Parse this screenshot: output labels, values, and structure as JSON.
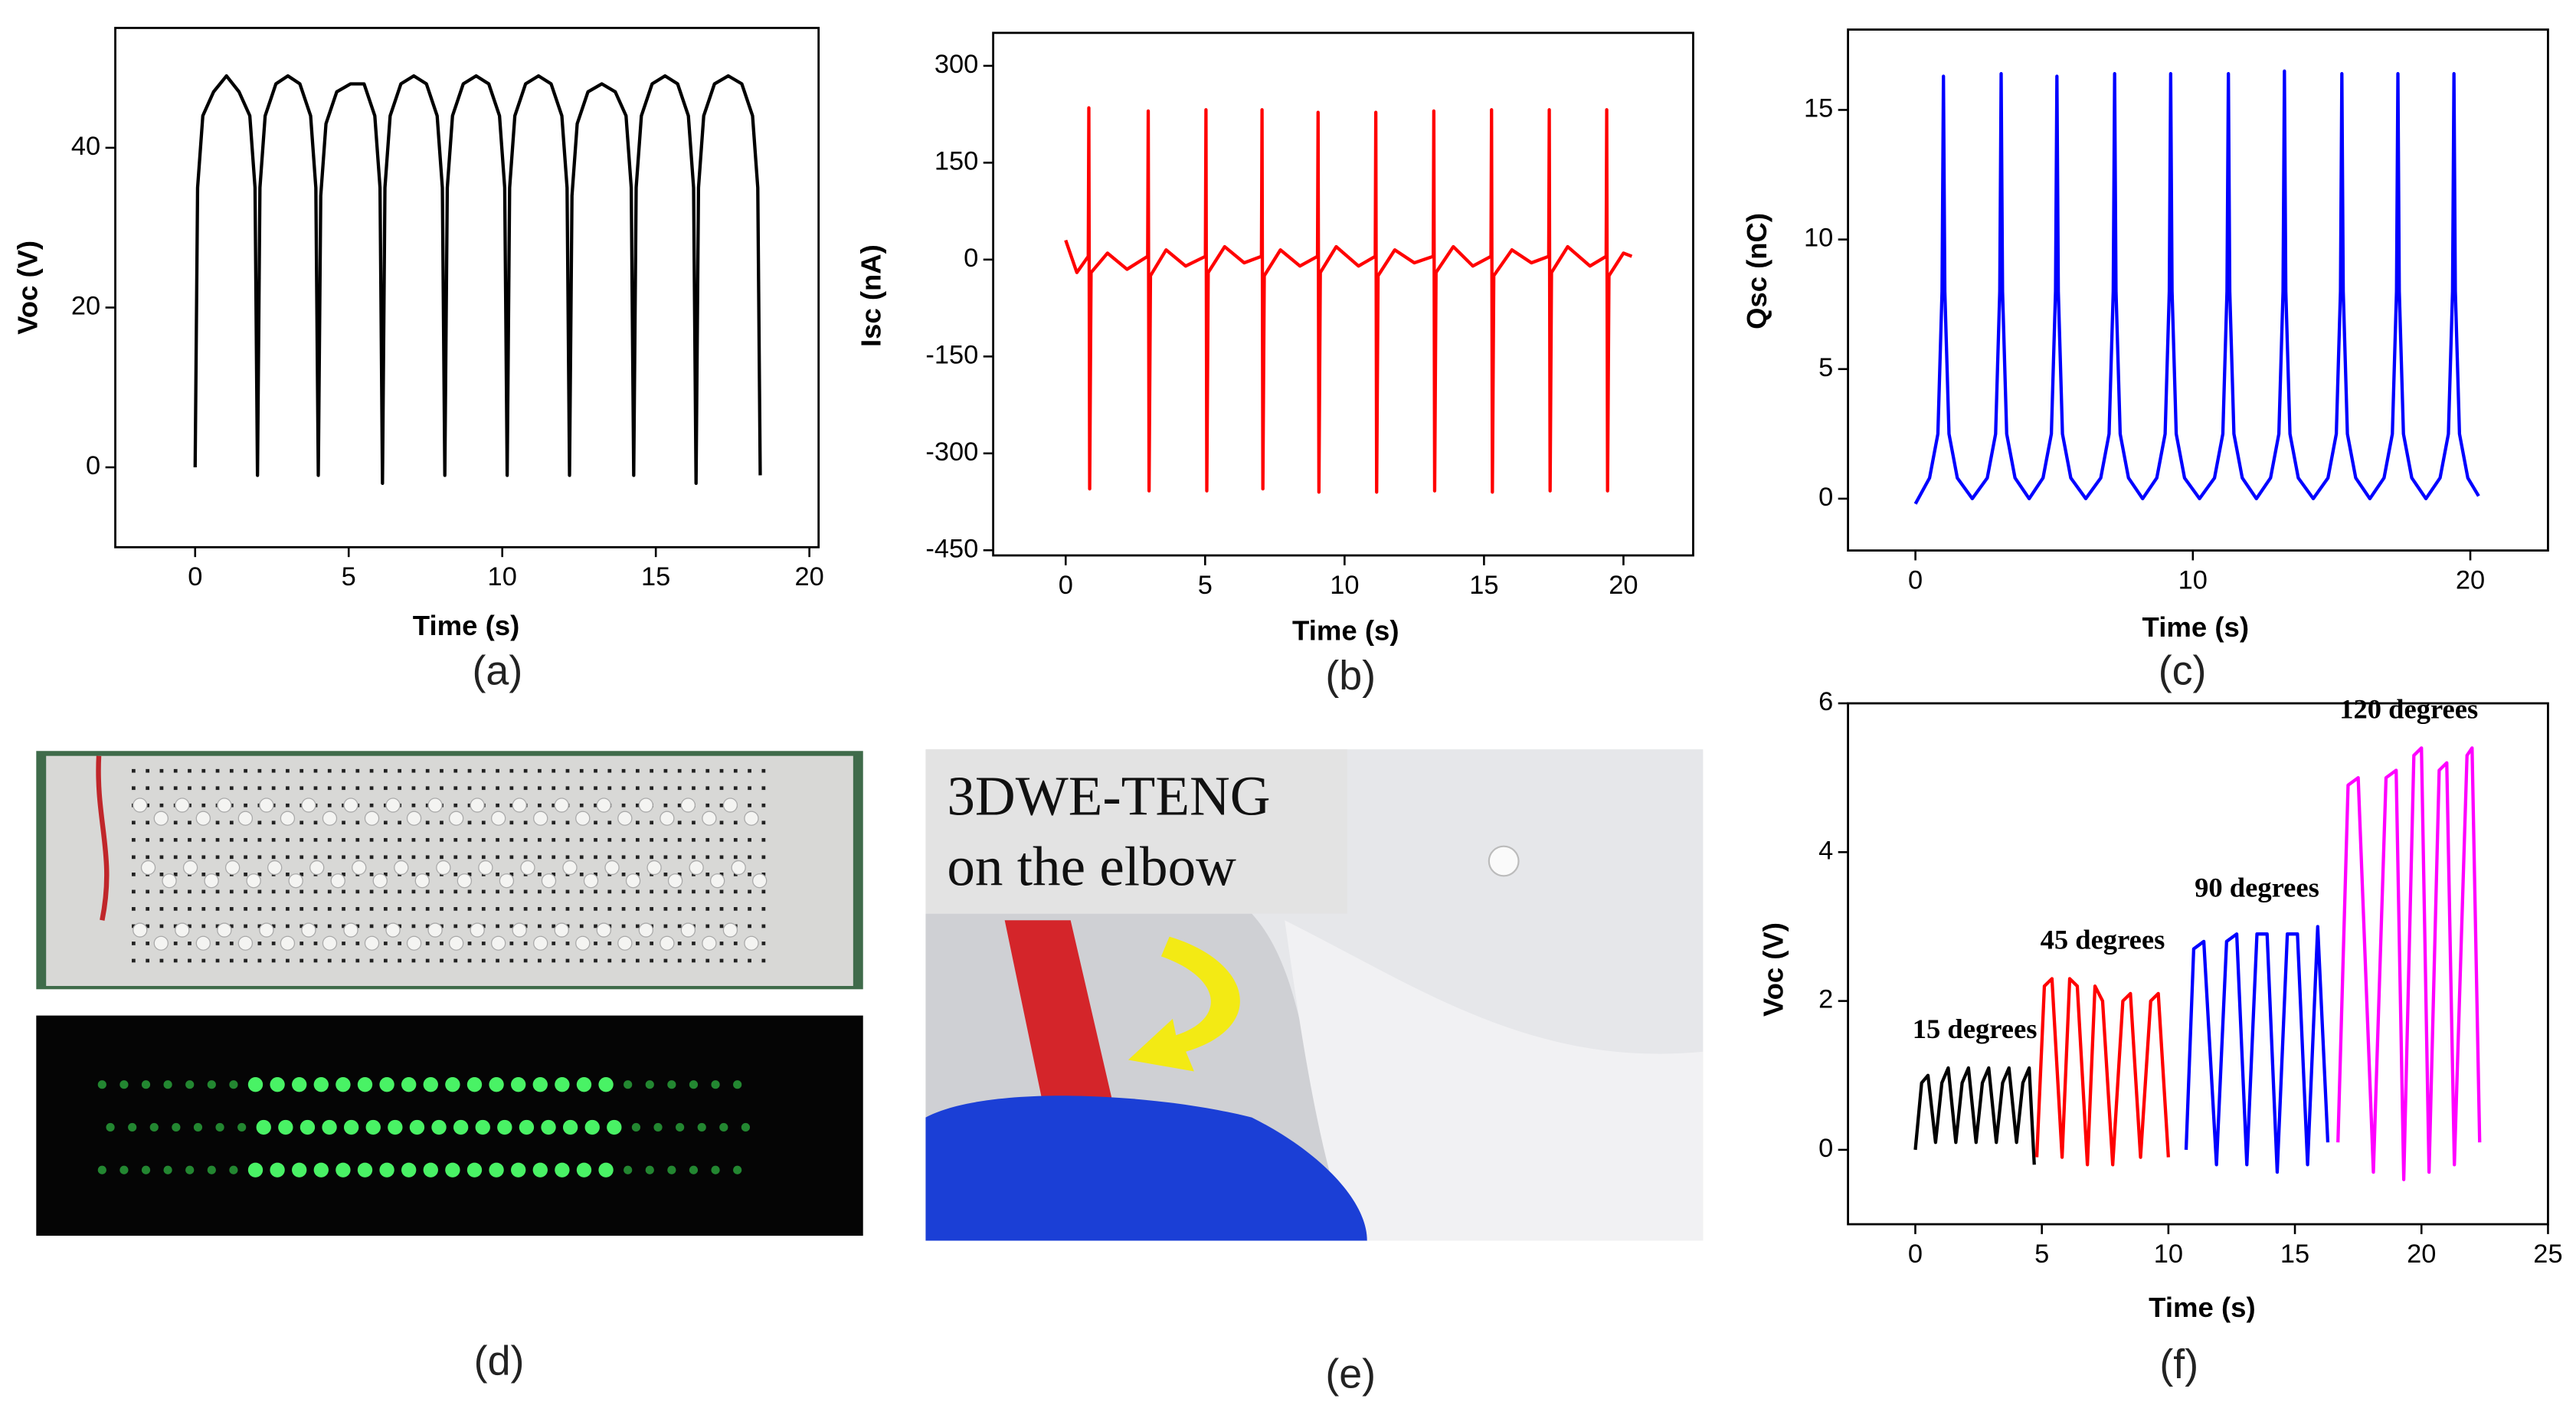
{
  "chart_data": [
    {
      "type": "line",
      "caption": "(a)",
      "xlabel": "Time (s)",
      "ylabel": "Voc (V)",
      "color": "#000000",
      "xlim": [
        -2.6,
        20.3
      ],
      "ylim": [
        -10,
        55
      ],
      "xticks": [
        0,
        5,
        10,
        15,
        20
      ],
      "yticks": [
        0,
        20,
        40
      ],
      "x": [
        0,
        0.08,
        0.25,
        0.6,
        1.02,
        1.43,
        1.78,
        1.95,
        2.03,
        2.11,
        2.28,
        2.63,
        3.02,
        3.41,
        3.76,
        3.93,
        4.01,
        4.09,
        4.26,
        4.61,
        5.06,
        5.5,
        5.85,
        6.02,
        6.1,
        6.18,
        6.35,
        6.7,
        7.12,
        7.53,
        7.88,
        8.05,
        8.13,
        8.21,
        8.38,
        8.73,
        9.15,
        9.56,
        9.91,
        10.08,
        10.16,
        10.24,
        10.41,
        10.76,
        11.18,
        11.59,
        11.94,
        12.11,
        12.19,
        12.27,
        12.44,
        12.79,
        13.24,
        13.68,
        14.03,
        14.2,
        14.28,
        14.36,
        14.53,
        14.88,
        15.3,
        15.71,
        16.06,
        16.23,
        16.31,
        16.39,
        16.56,
        16.91,
        17.36,
        17.8,
        18.15,
        18.32,
        18.4
      ],
      "values": [
        0,
        35,
        44,
        47,
        49,
        47,
        44,
        35,
        -1,
        35,
        44,
        48,
        49,
        48,
        44,
        35,
        -1,
        34,
        43,
        47,
        48,
        48,
        44,
        35,
        -2,
        35,
        44,
        48,
        49,
        48,
        44,
        35,
        -1,
        35,
        44,
        48,
        49,
        48,
        44,
        35,
        -1,
        35,
        44,
        48,
        49,
        48,
        44,
        35,
        -1,
        34,
        43,
        47,
        48,
        47,
        44,
        35,
        -1,
        35,
        44,
        48,
        49,
        48,
        44,
        35,
        -2,
        35,
        44,
        48,
        49,
        48,
        44,
        35,
        -1
      ]
    },
    {
      "type": "line",
      "caption": "(b)",
      "xlabel": "Time (s)",
      "ylabel": "Isc (nA)",
      "color": "#ff0000",
      "xlim": [
        -2.6,
        22.5
      ],
      "ylim": [
        -458,
        351
      ],
      "xticks": [
        0,
        5,
        10,
        15,
        20
      ],
      "yticks": [
        -450,
        -300,
        -150,
        0,
        150,
        300
      ],
      "x": [
        0,
        0.4,
        0.81,
        0.83,
        0.86,
        0.91,
        1.5,
        2.2,
        2.94,
        2.96,
        2.99,
        3.04,
        3.6,
        4.3,
        5.01,
        5.03,
        5.06,
        5.11,
        5.7,
        6.4,
        7.02,
        7.04,
        7.07,
        7.12,
        7.7,
        8.4,
        9.03,
        9.05,
        9.08,
        9.13,
        9.7,
        10.5,
        11.1,
        11.12,
        11.15,
        11.2,
        11.8,
        12.5,
        13.18,
        13.2,
        13.23,
        13.28,
        13.9,
        14.6,
        15.25,
        15.27,
        15.3,
        15.35,
        16.0,
        16.7,
        17.32,
        17.34,
        17.37,
        17.42,
        18.0,
        18.8,
        19.38,
        19.4,
        19.43,
        19.48,
        20.0,
        20.3
      ],
      "values": [
        30,
        -20,
        5,
        235,
        -355,
        -20,
        10,
        -15,
        5,
        230,
        -358,
        -25,
        15,
        -10,
        5,
        232,
        -358,
        -20,
        20,
        -5,
        5,
        232,
        -355,
        -25,
        15,
        -10,
        5,
        228,
        -360,
        -20,
        20,
        -10,
        5,
        228,
        -360,
        -25,
        15,
        -5,
        5,
        230,
        -358,
        -20,
        20,
        -10,
        5,
        232,
        -360,
        -25,
        15,
        -5,
        5,
        232,
        -358,
        -20,
        20,
        -10,
        5,
        232,
        -358,
        -25,
        10,
        5
      ]
    },
    {
      "type": "line",
      "caption": "(c)",
      "xlabel": "Time (s)",
      "ylabel": "Qsc (nC)",
      "color": "#0000ff",
      "xlim": [
        -2.43,
        22.8
      ],
      "ylim": [
        -2,
        18.1
      ],
      "xticks": [
        0,
        10,
        20
      ],
      "yticks": [
        0,
        5,
        10,
        15
      ],
      "x": [
        0,
        0.51,
        0.81,
        0.96,
        1.01,
        1.06,
        1.21,
        1.51,
        2.05,
        2.59,
        2.89,
        3.04,
        3.09,
        3.14,
        3.29,
        3.59,
        4.1,
        4.6,
        4.9,
        5.05,
        5.1,
        5.15,
        5.3,
        5.6,
        6.14,
        6.68,
        6.98,
        7.13,
        7.18,
        7.23,
        7.38,
        7.68,
        8.19,
        8.7,
        9.0,
        9.15,
        9.2,
        9.25,
        9.4,
        9.7,
        10.24,
        10.78,
        11.08,
        11.23,
        11.28,
        11.33,
        11.48,
        11.78,
        12.29,
        12.8,
        13.1,
        13.25,
        13.3,
        13.35,
        13.5,
        13.8,
        14.34,
        14.87,
        15.17,
        15.32,
        15.37,
        15.42,
        15.57,
        15.87,
        16.38,
        16.89,
        17.19,
        17.34,
        17.39,
        17.44,
        17.59,
        17.89,
        18.4,
        18.91,
        19.21,
        19.36,
        19.41,
        19.46,
        19.61,
        19.91,
        20.3
      ],
      "values": [
        -0.2,
        0.8,
        2.5,
        8,
        16.3,
        8,
        2.5,
        0.8,
        0,
        0.8,
        2.5,
        8,
        16.4,
        8,
        2.5,
        0.8,
        0,
        0.8,
        2.5,
        8,
        16.3,
        8,
        2.5,
        0.8,
        0,
        0.8,
        2.5,
        8,
        16.4,
        8,
        2.5,
        0.8,
        0,
        0.8,
        2.5,
        8,
        16.4,
        8,
        2.5,
        0.8,
        0,
        0.8,
        2.5,
        8,
        16.4,
        8,
        2.5,
        0.8,
        0,
        0.8,
        2.5,
        8,
        16.5,
        8,
        2.5,
        0.8,
        0,
        0.8,
        2.5,
        8,
        16.4,
        8,
        2.5,
        0.8,
        0,
        0.8,
        2.5,
        8,
        16.4,
        8,
        2.5,
        0.8,
        0,
        0.8,
        2.5,
        8,
        16.4,
        8,
        2.5,
        0.8,
        0.1
      ]
    },
    {
      "type": "line",
      "caption": "(f)",
      "xlabel": "Time (s)",
      "ylabel": "Voc (V)",
      "xlim": [
        -2.66,
        25
      ],
      "ylim": [
        -1,
        6
      ],
      "xticks": [
        0,
        5,
        10,
        15,
        20,
        25
      ],
      "yticks": [
        0,
        2,
        4,
        6
      ],
      "series": [
        {
          "name": "15 degrees",
          "color": "#000000",
          "x": [
            0,
            0.25,
            0.5,
            0.8,
            1.05,
            1.3,
            1.6,
            1.85,
            2.1,
            2.4,
            2.65,
            2.9,
            3.2,
            3.45,
            3.7,
            4.0,
            4.25,
            4.5,
            4.7
          ],
          "values": [
            0,
            0.9,
            1.0,
            0.1,
            0.9,
            1.1,
            0.1,
            0.9,
            1.1,
            0.1,
            0.9,
            1.1,
            0.1,
            0.9,
            1.1,
            0.1,
            0.9,
            1.1,
            -0.2
          ]
        },
        {
          "name": "45 degrees",
          "color": "#ff0000",
          "x": [
            4.8,
            5.1,
            5.4,
            5.8,
            6.1,
            6.4,
            6.8,
            7.1,
            7.4,
            7.8,
            8.2,
            8.5,
            8.9,
            9.3,
            9.6,
            10.0
          ],
          "values": [
            -0.1,
            2.2,
            2.3,
            -0.1,
            2.3,
            2.2,
            -0.2,
            2.2,
            2.0,
            -0.2,
            2.0,
            2.1,
            -0.1,
            2.0,
            2.1,
            -0.1
          ]
        },
        {
          "name": "90 degrees",
          "color": "#0000ff",
          "x": [
            10.7,
            11.0,
            11.4,
            11.9,
            12.3,
            12.7,
            13.1,
            13.5,
            13.9,
            14.3,
            14.7,
            15.1,
            15.5,
            15.9,
            16.3
          ],
          "values": [
            0,
            2.7,
            2.8,
            -0.2,
            2.8,
            2.9,
            -0.2,
            2.9,
            2.9,
            -0.3,
            2.9,
            2.9,
            -0.2,
            3.0,
            0.1
          ]
        },
        {
          "name": "120 degrees",
          "color": "#ff00ff",
          "x": [
            16.7,
            17.1,
            17.5,
            18.1,
            18.6,
            19.0,
            19.3,
            19.7,
            20.0,
            20.3,
            20.7,
            21.0,
            21.3,
            21.8,
            22.0,
            22.3
          ],
          "values": [
            0.1,
            4.9,
            5.0,
            -0.3,
            5.0,
            5.1,
            -0.4,
            5.3,
            5.4,
            -0.3,
            5.1,
            5.2,
            -0.2,
            5.3,
            5.4,
            0.1
          ]
        }
      ]
    }
  ],
  "photos": [
    {
      "caption": "(d)"
    },
    {
      "caption": "(e)",
      "text": [
        "3DWE-TENG",
        "on the elbow"
      ]
    }
  ]
}
